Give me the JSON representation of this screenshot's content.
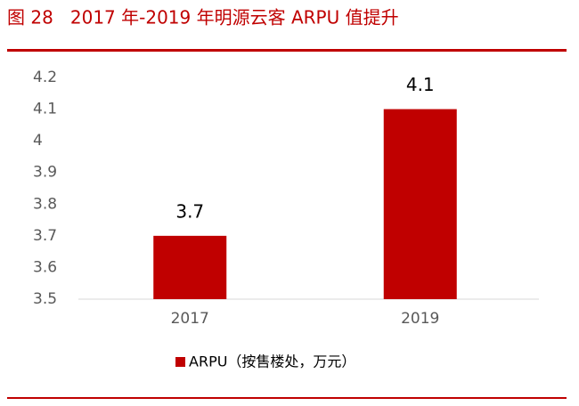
{
  "chart_data": {
    "type": "bar",
    "title": "图 28   2017 年-2019 年明源云客 ARPU 值提升",
    "categories": [
      "2017",
      "2019"
    ],
    "series": [
      {
        "name": "ARPU（按售楼处，万元）",
        "color": "#c00000",
        "values": [
          3.7,
          4.1
        ]
      }
    ],
    "ylim": [
      3.5,
      4.2
    ],
    "yticks": [
      3.5,
      3.6,
      3.7,
      3.8,
      3.9,
      4,
      4.1,
      4.2
    ],
    "grid": false,
    "legend": "bottom"
  }
}
